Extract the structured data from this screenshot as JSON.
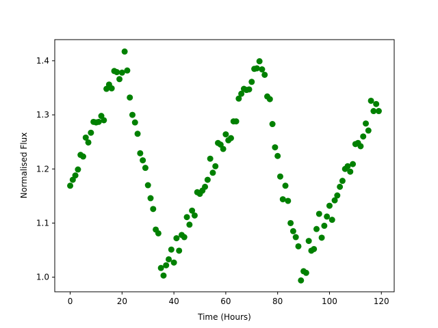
{
  "chart_data": {
    "type": "scatter",
    "title": "",
    "xlabel": "Time (Hours)",
    "ylabel": "Normalised Flux",
    "xlim": [
      -5.95,
      124.95
    ],
    "ylim": [
      0.973,
      1.439
    ],
    "xticks": [
      0,
      20,
      40,
      60,
      80,
      100,
      120
    ],
    "yticks": [
      1.0,
      1.1,
      1.2,
      1.3,
      1.4
    ],
    "xtick_labels": [
      "0",
      "20",
      "40",
      "60",
      "80",
      "100",
      "120"
    ],
    "ytick_labels": [
      "1.0",
      "1.1",
      "1.2",
      "1.3",
      "1.4"
    ],
    "grid": false,
    "marker_color": "#008000",
    "series": [
      {
        "x": [
          0,
          1,
          2,
          3,
          4,
          5,
          6,
          7,
          8,
          9,
          10,
          11,
          12,
          13,
          14,
          15,
          16,
          17,
          18,
          19,
          20,
          21,
          22,
          23,
          24,
          25,
          26,
          27,
          28,
          29,
          30,
          31,
          32,
          33,
          34,
          35,
          36,
          37,
          38,
          39,
          40,
          41,
          42,
          43,
          44,
          45,
          46,
          47,
          48,
          49,
          50,
          51,
          52,
          53,
          54,
          55,
          56,
          57,
          58,
          59,
          60,
          61,
          62,
          63,
          64,
          65,
          66,
          67,
          68,
          69,
          70,
          71,
          72,
          73,
          74,
          75,
          76,
          77,
          78,
          79,
          80,
          81,
          82,
          83,
          84,
          85,
          86,
          87,
          88,
          89,
          90,
          91,
          92,
          93,
          94,
          95,
          96,
          97,
          98,
          99,
          100,
          101,
          102,
          103,
          104,
          105,
          106,
          107,
          108,
          109,
          110,
          111,
          112,
          113,
          114,
          115,
          116,
          117,
          118,
          119
        ],
        "y": [
          1.169,
          1.18,
          1.188,
          1.199,
          1.226,
          1.223,
          1.258,
          1.249,
          1.267,
          1.287,
          1.286,
          1.287,
          1.298,
          1.29,
          1.348,
          1.356,
          1.349,
          1.381,
          1.379,
          1.366,
          1.378,
          1.417,
          1.382,
          1.332,
          1.3,
          1.286,
          1.265,
          1.229,
          1.216,
          1.202,
          1.17,
          1.146,
          1.126,
          1.088,
          1.081,
          1.017,
          1.003,
          1.022,
          1.033,
          1.051,
          1.027,
          1.072,
          1.049,
          1.078,
          1.074,
          1.111,
          1.097,
          1.123,
          1.114,
          1.157,
          1.154,
          1.16,
          1.167,
          1.18,
          1.219,
          1.193,
          1.205,
          1.248,
          1.245,
          1.237,
          1.264,
          1.253,
          1.257,
          1.288,
          1.288,
          1.33,
          1.339,
          1.348,
          1.346,
          1.347,
          1.361,
          1.385,
          1.386,
          1.399,
          1.384,
          1.374,
          1.334,
          1.329,
          1.283,
          1.24,
          1.224,
          1.186,
          1.144,
          1.169,
          1.141,
          1.1,
          1.085,
          1.074,
          1.057,
          0.994,
          1.011,
          1.008,
          1.067,
          1.049,
          1.052,
          1.089,
          1.117,
          1.073,
          1.095,
          1.112,
          1.132,
          1.106,
          1.142,
          1.151,
          1.167,
          1.178,
          1.2,
          1.205,
          1.195,
          1.209,
          1.246,
          1.248,
          1.242,
          1.26,
          1.284,
          1.271,
          1.326,
          1.307,
          1.32,
          1.307
        ]
      }
    ]
  }
}
